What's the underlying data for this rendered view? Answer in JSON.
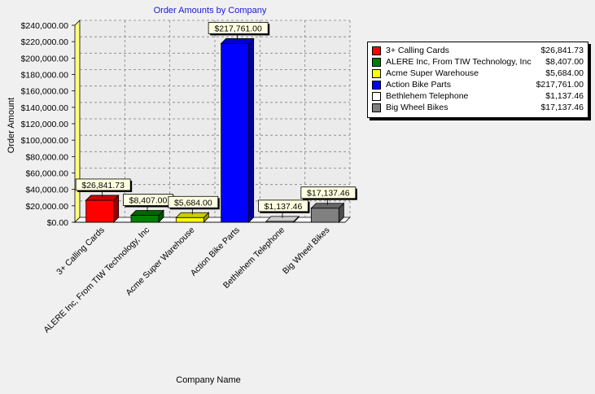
{
  "chart_data": {
    "type": "bar",
    "title": "Order Amounts by Company",
    "xlabel": "Company Name",
    "ylabel": "Order Amount",
    "ylim": [
      0,
      240000
    ],
    "yticks": [
      0,
      20000,
      40000,
      60000,
      80000,
      100000,
      120000,
      140000,
      160000,
      180000,
      200000,
      220000,
      240000
    ],
    "ytick_labels": [
      "$0.00",
      "$20,000.00",
      "$40,000.00",
      "$60,000.00",
      "$80,000.00",
      "$100,000.00",
      "$120,000.00",
      "$140,000.00",
      "$160,000.00",
      "$180,000.00",
      "$200,000.00",
      "$220,000.00",
      "$240,000.00"
    ],
    "categories": [
      "3+ Calling Cards",
      "ALERE Inc, From TIW Technology, Inc",
      "Acme Super Warehouse",
      "Action Bike Parts",
      "Bethlehem Telephone",
      "Big Wheel Bikes"
    ],
    "values": [
      26841.73,
      8407.0,
      5684.0,
      217761.0,
      1137.46,
      17137.46
    ],
    "value_labels": [
      "$26,841.73",
      "$8,407.00",
      "$5,684.00",
      "$217,761.00",
      "$1,137.46",
      "$17,137.46"
    ],
    "colors": [
      "#ff0000",
      "#008000",
      "#ffff00",
      "#0000ff",
      "#ffffff",
      "#808080"
    ],
    "grid": true,
    "legend_position": "right"
  }
}
